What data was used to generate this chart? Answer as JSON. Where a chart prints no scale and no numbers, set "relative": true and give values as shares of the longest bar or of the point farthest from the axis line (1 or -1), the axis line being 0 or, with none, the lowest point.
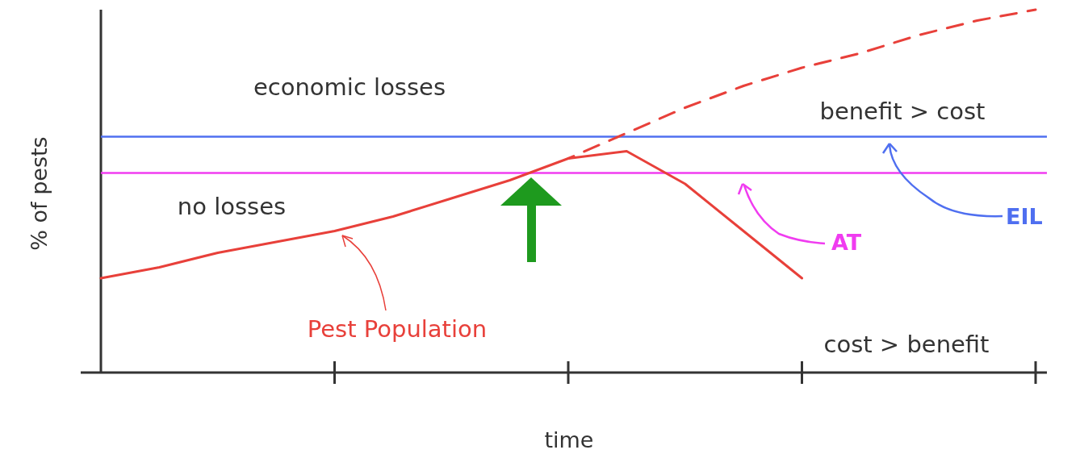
{
  "chart_data": {
    "type": "line",
    "relative": true,
    "xlabel": "time",
    "ylabel": "% of pests",
    "marker": "none",
    "categories": [
      null,
      null,
      null,
      null,
      null,
      null,
      null,
      null,
      null,
      null,
      null,
      null,
      null,
      null,
      null,
      null,
      null
    ],
    "series": [
      {
        "name": "Pest Population",
        "color": "#e8403a",
        "line_style": "solid",
        "values": [
          0.26,
          0.29,
          0.33,
          0.36,
          0.39,
          0.43,
          0.48,
          0.53,
          0.59,
          0.61,
          0.52,
          0.39,
          0.26,
          null,
          null,
          null,
          null
        ]
      },
      {
        "color": "#e8403a",
        "line_style": "dashed",
        "values": [
          null,
          null,
          null,
          null,
          null,
          null,
          null,
          null,
          0.59,
          0.66,
          0.73,
          0.79,
          0.84,
          0.88,
          0.93,
          0.97,
          1.0
        ]
      }
    ],
    "ref_lines": [
      {
        "axis": "y",
        "value": 0.65,
        "label": "EIL",
        "color": "#4f6ff0"
      },
      {
        "axis": "y",
        "value": 0.55,
        "label": "AT",
        "color": "#f03cf0"
      }
    ],
    "annotations": [
      "economic losses",
      "no losses",
      "benefit > cost",
      "cost > benefit"
    ]
  }
}
